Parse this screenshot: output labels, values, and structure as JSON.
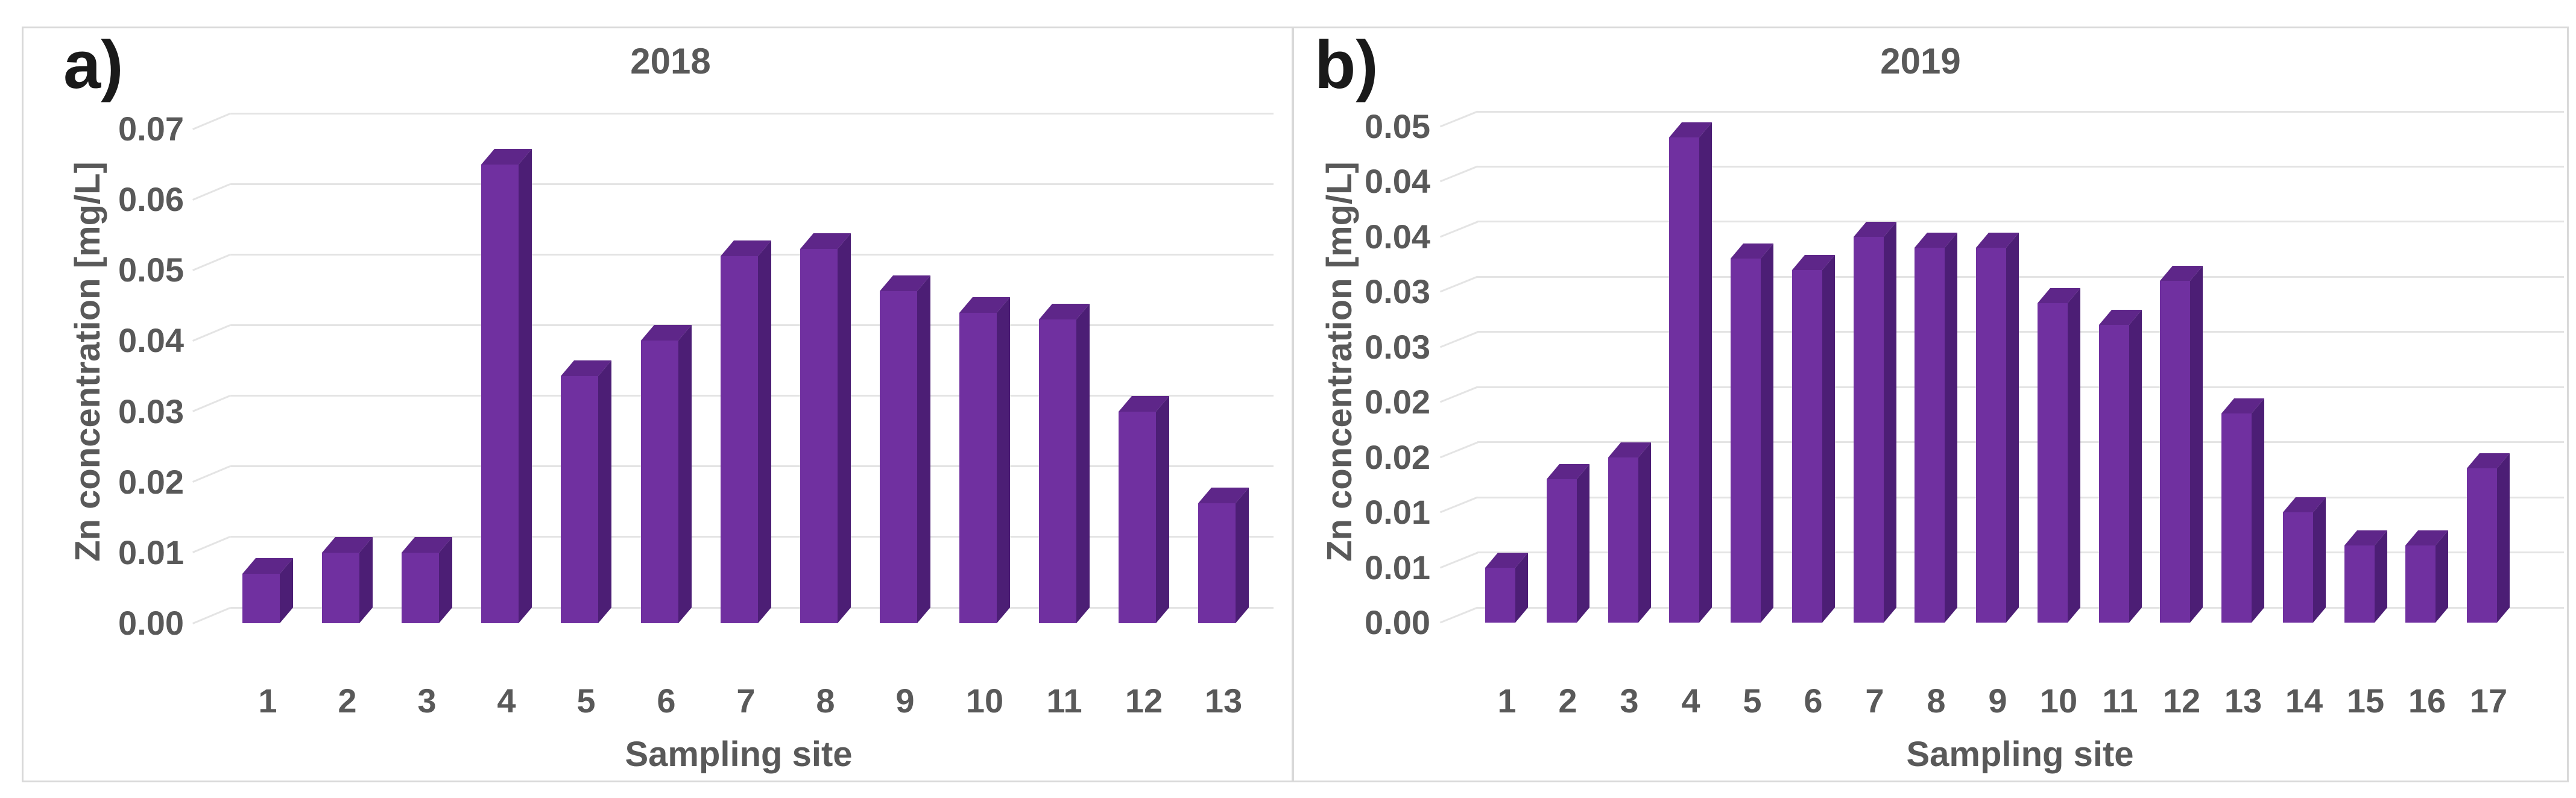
{
  "figure": {
    "panel_a_label": "a)",
    "panel_b_label": "b)"
  },
  "colors": {
    "bar_front": "#7030A0",
    "bar_side": "#4C1E75",
    "bar_top": "#5E2689",
    "text": "#595959",
    "panel_label_text": "#1a1a1a",
    "gridline": "#e4e4e4",
    "chart_border": "#d9d9d9",
    "background": "#ffffff"
  },
  "chart_data": [
    {
      "type": "bar",
      "panel_label": "a)",
      "title": "2018",
      "xlabel": "Sampling site",
      "ylabel": "Zn concentration [mg/L]",
      "categories": [
        "1",
        "2",
        "3",
        "4",
        "5",
        "6",
        "7",
        "8",
        "9",
        "10",
        "11",
        "12",
        "13"
      ],
      "values": [
        0.007,
        0.01,
        0.01,
        0.065,
        0.035,
        0.04,
        0.052,
        0.053,
        0.047,
        0.044,
        0.043,
        0.03,
        0.017
      ],
      "ymax": 0.07,
      "ylim": [
        0,
        0.07
      ],
      "tick_step": 0.01,
      "y_tick_labels": [
        "0.00",
        "0.01",
        "0.02",
        "0.03",
        "0.04",
        "0.05",
        "0.06",
        "0.07"
      ],
      "grid": true,
      "legend": "none",
      "style": "3d-column"
    },
    {
      "type": "bar",
      "panel_label": "b)",
      "title": "2019",
      "xlabel": "Sampling site",
      "ylabel": "Zn concentration [mg/L]",
      "categories": [
        "1",
        "2",
        "3",
        "4",
        "5",
        "6",
        "7",
        "8",
        "9",
        "10",
        "11",
        "12",
        "13",
        "14",
        "15",
        "16",
        "17"
      ],
      "values": [
        0.005,
        0.013,
        0.015,
        0.044,
        0.033,
        0.032,
        0.035,
        0.034,
        0.034,
        0.029,
        0.027,
        0.031,
        0.019,
        0.01,
        0.007,
        0.007,
        0.014
      ],
      "ymax": 0.045,
      "ylim": [
        0,
        0.045
      ],
      "tick_step": 0.005,
      "y_tick_labels": [
        "0.00",
        "0.01",
        "0.01",
        "0.02",
        "0.02",
        "0.03",
        "0.03",
        "0.04",
        "0.04",
        "0.05"
      ],
      "grid": true,
      "legend": "none",
      "style": "3d-column"
    }
  ]
}
